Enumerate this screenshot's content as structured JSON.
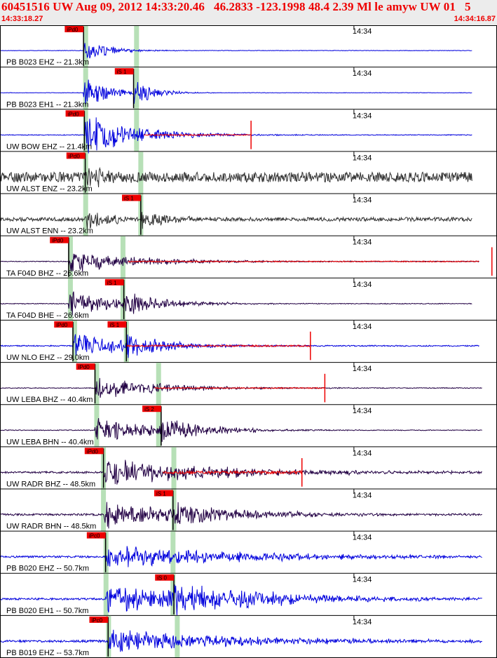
{
  "header": {
    "event_line": "60451516 UW Aug 09, 2012 14:33:20.46   46.2833 -123.1998 48.4 2.39 Ml le amyw UW 01   5",
    "start_time": "14:33:18.27",
    "end_time": "14:34:16.87"
  },
  "chart_data": {
    "type": "line",
    "title": "60451516 UW Aug 09, 2012 14:33:20.46   46.2833 -123.1998 48.4 2.39 Ml le amyw UW 01   5",
    "x_axis": {
      "start_time": "14:33:18.27",
      "end_time": "14:34:16.87",
      "tick_label": "14:34",
      "tick_seconds": 41.73,
      "duration_seconds": 58.6
    },
    "traces": [
      {
        "label": "PB B023 EHZ -- 21.3km",
        "color": "#0000dd",
        "p_label": "iPd0",
        "p_time": 9.85,
        "s_label": "",
        "s_time": null,
        "p_shade": 10.1,
        "s_shade": 16.1,
        "end_time": 55.7,
        "amp": 0.55,
        "noise": 0.012,
        "decay": 2.8
      },
      {
        "label": "PB B023 EH1 -- 21.3km",
        "color": "#0000dd",
        "p_label": "",
        "p_time": 9.85,
        "s_label": "iS 1",
        "s_time": 15.75,
        "p_shade": 10.1,
        "s_shade": 16.1,
        "end_time": 55.7,
        "amp": 0.75,
        "noise": 0.012,
        "decay": 3.0
      },
      {
        "label": "UW BOW EHZ -- 21.4km",
        "color": "#0000dd",
        "p_label": "iPd0",
        "p_time": 9.95,
        "s_label": "",
        "s_time": null,
        "p_shade": 10.1,
        "s_shade": 16.1,
        "end_time": 55.7,
        "amp": 1.0,
        "noise": 0.02,
        "decay": 6.0,
        "spike_time": 29.6
      },
      {
        "label": "UW ALST ENZ -- 23.2km",
        "color": "#333333",
        "p_label": "iPd0",
        "p_time": 10.05,
        "s_label": "",
        "s_time": null,
        "p_shade": 10.1,
        "s_shade": 16.6,
        "end_time": 55.7,
        "amp": 0.45,
        "noise": 0.26,
        "decay": 3.0
      },
      {
        "label": "UW ALST ENN -- 23.2km",
        "color": "#333333",
        "p_label": "",
        "p_time": 10.05,
        "s_label": "iS 1",
        "s_time": 16.6,
        "p_shade": 10.1,
        "s_shade": 16.6,
        "end_time": 55.7,
        "amp": 0.55,
        "noise": 0.1,
        "decay": 3.5
      },
      {
        "label": "TA F04D BHZ -- 26.6km",
        "color": "#220044",
        "p_label": "iPd0",
        "p_time": 8.1,
        "s_label": "",
        "s_time": null,
        "p_shade": 8.3,
        "s_shade": 14.5,
        "end_time": 56.5,
        "amp": 0.55,
        "noise": 0.02,
        "decay": 8.0,
        "spike_time": 58.0
      },
      {
        "label": "TA F04D BHE -- 26.6km",
        "color": "#220044",
        "p_label": "",
        "p_time": 8.1,
        "s_label": "iS 1",
        "s_time": 14.6,
        "p_shade": 8.3,
        "s_shade": 14.5,
        "end_time": 55.7,
        "amp": 0.6,
        "noise": 0.02,
        "decay": 6.0
      },
      {
        "label": "UW NLO EHZ -- 29.0km",
        "color": "#0000dd",
        "p_label": "iPd0",
        "p_time": 8.6,
        "s_label": "iS 1",
        "s_time": 14.9,
        "p_shade": 8.8,
        "s_shade": 14.9,
        "end_time": 56.5,
        "amp": 0.65,
        "noise": 0.03,
        "decay": 6.0,
        "spike_time": 36.6
      },
      {
        "label": "UW LEBA BHZ -- 40.4km",
        "color": "#220044",
        "p_label": "iPd0",
        "p_time": 11.2,
        "s_label": "",
        "s_time": null,
        "p_shade": 11.4,
        "s_shade": 18.7,
        "end_time": 56.9,
        "amp": 0.5,
        "noise": 0.02,
        "decay": 8.0,
        "spike_time": 38.3
      },
      {
        "label": "UW LEBA BHN -- 40.4km",
        "color": "#220044",
        "p_label": "",
        "p_time": 11.2,
        "s_label": "iS 2",
        "s_time": 19.0,
        "p_shade": 11.4,
        "s_shade": 18.7,
        "end_time": 56.9,
        "amp": 0.6,
        "noise": 0.02,
        "decay": 7.0
      },
      {
        "label": "UW RADR BHZ -- 48.5km",
        "color": "#220044",
        "p_label": "iPd0",
        "p_time": 12.2,
        "s_label": "",
        "s_time": null,
        "p_shade": 12.2,
        "s_shade": 20.5,
        "end_time": 56.9,
        "amp": 0.65,
        "noise": 0.05,
        "decay": 14.0,
        "spike_time": 35.6
      },
      {
        "label": "UW RADR BHN -- 48.5km",
        "color": "#220044",
        "p_label": "",
        "p_time": 12.2,
        "s_label": "iS 1",
        "s_time": 20.4,
        "p_shade": 12.2,
        "s_shade": 20.5,
        "end_time": 56.9,
        "amp": 0.6,
        "noise": 0.05,
        "decay": 10.0
      },
      {
        "label": "PB B020 EHZ -- 50.7km",
        "color": "#0000dd",
        "p_label": "iPc0",
        "p_time": 12.45,
        "s_label": "",
        "s_time": null,
        "p_shade": 12.5,
        "s_shade": 20.4,
        "end_time": 56.9,
        "amp": 0.5,
        "noise": 0.05,
        "decay": 18.0
      },
      {
        "label": "PB B020 EH1 -- 50.7km",
        "color": "#0000dd",
        "p_label": "",
        "p_time": 12.45,
        "s_label": "iS 0",
        "s_time": 20.5,
        "p_shade": 12.5,
        "s_shade": 20.4,
        "end_time": 56.9,
        "amp": 0.7,
        "noise": 0.05,
        "decay": 14.0
      },
      {
        "label": "PB B019 EHZ -- 53.7km",
        "color": "#0000dd",
        "p_label": "iPc0",
        "p_time": 12.75,
        "s_label": "",
        "s_time": null,
        "p_shade": 12.8,
        "s_shade": 20.9,
        "end_time": 56.9,
        "amp": 0.55,
        "noise": 0.06,
        "decay": 16.0
      }
    ]
  },
  "colors": {
    "pick_box": "#ee0000",
    "shade": "#b7e0b7",
    "coda_overlay": "#ee0000",
    "separator": "#000000"
  }
}
